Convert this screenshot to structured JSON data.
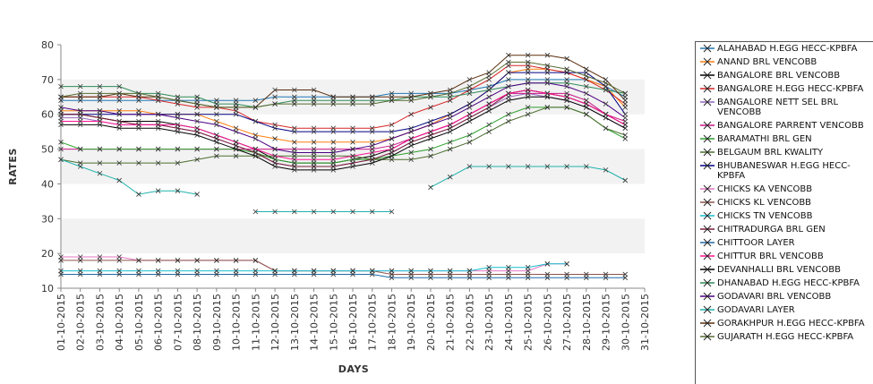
{
  "chart_data": {
    "type": "line",
    "xlabel": "DAYS",
    "ylabel": "RATES",
    "ylim": [
      10,
      80
    ],
    "yticks": [
      10,
      20,
      30,
      40,
      50,
      60,
      70,
      80
    ],
    "grid": "alternating horizontal bands",
    "legend": "right",
    "x": [
      "01-10-2015",
      "02-10-2015",
      "03-10-2015",
      "04-10-2015",
      "05-10-2015",
      "06-10-2015",
      "07-10-2015",
      "08-10-2015",
      "09-10-2015",
      "10-10-2015",
      "11-10-2015",
      "12-10-2015",
      "13-10-2015",
      "14-10-2015",
      "15-10-2015",
      "16-10-2015",
      "17-10-2015",
      "18-10-2015",
      "19-10-2015",
      "20-10-2015",
      "21-10-2015",
      "22-10-2015",
      "23-10-2015",
      "24-10-2015",
      "25-10-2015",
      "26-10-2015",
      "27-10-2015",
      "28-10-2015",
      "29-10-2015",
      "30-10-2015",
      "31-10-2015"
    ],
    "series": [
      {
        "name": "ALAHABAD H.EGG HECC-KPBFA",
        "color": "#1f77b4",
        "values": [
          64,
          64,
          64,
          64,
          64,
          64,
          64,
          64,
          64,
          64,
          64,
          65,
          65,
          65,
          65,
          65,
          65,
          66,
          66,
          66,
          66,
          67,
          68,
          70,
          70,
          70,
          70,
          70,
          68,
          65,
          null
        ]
      },
      {
        "name": "ANAND BRL VENCOBB",
        "color": "#ff7f0e",
        "values": [
          61,
          61,
          61,
          61,
          61,
          60,
          60,
          60,
          58,
          56,
          54,
          53,
          52,
          52,
          52,
          52,
          52,
          53,
          55,
          57,
          60,
          63,
          67,
          72,
          73,
          73,
          72,
          70,
          68,
          62,
          null
        ]
      },
      {
        "name": "BANGALORE BRL VENCOBB",
        "color": "#000000",
        "values": [
          60,
          60,
          59,
          58,
          58,
          58,
          57,
          56,
          54,
          52,
          50,
          47,
          46,
          46,
          46,
          47,
          48,
          50,
          53,
          55,
          57,
          60,
          63,
          66,
          67,
          66,
          65,
          63,
          60,
          57,
          null
        ]
      },
      {
        "name": "BANGALORE H.EGG HECC-KPBFA",
        "color": "#d62728",
        "values": [
          65,
          65,
          65,
          65,
          65,
          64,
          63,
          62,
          62,
          61,
          58,
          57,
          56,
          56,
          56,
          56,
          56,
          57,
          60,
          62,
          64,
          67,
          70,
          74,
          74,
          73,
          72,
          70,
          67,
          63,
          null
        ]
      },
      {
        "name": "BANGALORE NETT SEL BRL VENCOBB",
        "color": "#9467bd",
        "values": [
          59,
          59,
          58,
          57,
          57,
          57,
          56,
          55,
          53,
          51,
          49,
          46,
          45,
          45,
          45,
          46,
          47,
          49,
          52,
          54,
          56,
          59,
          62,
          65,
          66,
          65,
          64,
          62,
          59,
          56,
          null
        ]
      },
      {
        "name": "BANGALORE PARRENT VENCOBB",
        "color": "#c71585",
        "values": [
          50,
          50,
          50,
          50,
          50,
          50,
          50,
          50,
          50,
          50,
          50,
          50,
          50,
          50,
          50,
          50,
          50,
          51,
          53,
          55,
          57,
          60,
          63,
          66,
          66,
          66,
          66,
          64,
          60,
          58,
          null
        ]
      },
      {
        "name": "BARAMATHI BRL GEN",
        "color": "#2ca02c",
        "values": [
          52,
          50,
          50,
          50,
          50,
          50,
          50,
          50,
          50,
          50,
          49,
          47,
          46,
          46,
          46,
          47,
          47,
          48,
          49,
          50,
          52,
          54,
          57,
          60,
          62,
          62,
          62,
          60,
          56,
          53,
          null
        ]
      },
      {
        "name": "BELGAUM BRL KWALITY",
        "color": "#4b6e2e",
        "values": [
          47,
          46,
          46,
          46,
          46,
          46,
          46,
          47,
          48,
          48,
          48,
          48,
          48,
          48,
          48,
          48,
          47,
          47,
          47,
          48,
          50,
          52,
          55,
          58,
          60,
          62,
          62,
          60,
          56,
          54,
          null
        ]
      },
      {
        "name": "BHUBANESWAR H.EGG HECC-KPBFA",
        "color": "#000080",
        "values": [
          60,
          60,
          60,
          60,
          60,
          60,
          60,
          60,
          60,
          60,
          58,
          56,
          55,
          55,
          55,
          55,
          55,
          55,
          56,
          58,
          60,
          63,
          67,
          72,
          72,
          72,
          72,
          72,
          68,
          60,
          null
        ]
      },
      {
        "name": "CHICKS KA VENCOBB",
        "color": "#e377c2",
        "values": [
          19,
          19,
          19,
          19,
          18,
          18,
          18,
          18,
          18,
          18,
          18,
          15,
          15,
          15,
          15,
          15,
          15,
          15,
          15,
          15,
          15,
          15,
          15,
          15,
          15,
          17,
          17,
          null,
          null,
          null,
          null
        ]
      },
      {
        "name": "CHICKS KL VENCOBB",
        "color": "#8c564b",
        "values": [
          18,
          18,
          18,
          18,
          18,
          18,
          18,
          18,
          18,
          18,
          18,
          15,
          15,
          15,
          15,
          15,
          15,
          14,
          14,
          14,
          14,
          14,
          14,
          14,
          14,
          14,
          14,
          14,
          14,
          14,
          null
        ]
      },
      {
        "name": "CHICKS TN VENCOBB",
        "color": "#17becf",
        "values": [
          15,
          15,
          15,
          15,
          15,
          15,
          15,
          15,
          15,
          15,
          15,
          15,
          15,
          15,
          15,
          15,
          15,
          15,
          15,
          15,
          15,
          15,
          16,
          16,
          16,
          17,
          17,
          null,
          null,
          null,
          null
        ]
      },
      {
        "name": "CHITRADURGA BRL GEN",
        "color": "#7b1e3a",
        "values": [
          60,
          60,
          59,
          58,
          57,
          57,
          56,
          55,
          53,
          51,
          49,
          46,
          45,
          45,
          45,
          46,
          47,
          49,
          52,
          54,
          56,
          59,
          62,
          66,
          67,
          66,
          65,
          63,
          60,
          57,
          null
        ]
      },
      {
        "name": "CHITTOOR LAYER",
        "color": "#1e6aa8",
        "values": [
          14,
          14,
          14,
          14,
          14,
          14,
          14,
          14,
          14,
          14,
          14,
          14,
          14,
          14,
          14,
          14,
          14,
          13,
          13,
          13,
          13,
          13,
          13,
          13,
          13,
          13,
          13,
          13,
          13,
          13,
          null
        ]
      },
      {
        "name": "CHITTUR BRL VENCOBB",
        "color": "#ff1493",
        "values": [
          58,
          58,
          58,
          57,
          57,
          57,
          57,
          56,
          54,
          52,
          50,
          48,
          47,
          47,
          47,
          48,
          49,
          50,
          53,
          55,
          57,
          60,
          63,
          66,
          67,
          66,
          65,
          63,
          60,
          57,
          null
        ]
      },
      {
        "name": "DEVANHALLI BRL VENCOBB",
        "color": "#000000",
        "values": [
          57,
          57,
          57,
          56,
          56,
          56,
          55,
          54,
          52,
          50,
          48,
          45,
          44,
          44,
          44,
          45,
          46,
          48,
          51,
          53,
          55,
          58,
          61,
          64,
          65,
          65,
          64,
          62,
          59,
          56,
          null
        ]
      },
      {
        "name": "DHANABAD H.EGG HECC-KPBFA",
        "color": "#2e8b57",
        "values": [
          68,
          68,
          68,
          68,
          66,
          66,
          65,
          65,
          63,
          63,
          62,
          63,
          64,
          64,
          64,
          64,
          64,
          64,
          65,
          65,
          65,
          66,
          67,
          68,
          69,
          69,
          69,
          68,
          67,
          66,
          null
        ]
      },
      {
        "name": "GODAVARI BRL VENCOBB",
        "color": "#4b0082",
        "values": [
          62,
          61,
          61,
          60,
          60,
          60,
          59,
          58,
          57,
          55,
          53,
          50,
          49,
          49,
          49,
          50,
          51,
          53,
          55,
          57,
          59,
          62,
          65,
          68,
          69,
          69,
          68,
          66,
          63,
          59,
          null
        ]
      },
      {
        "name": "GODAVARI LAYER",
        "color": "#20b2aa",
        "values": [
          47,
          45,
          43,
          41,
          37,
          38,
          38,
          37,
          null,
          null,
          32,
          32,
          32,
          32,
          32,
          32,
          32,
          32,
          null,
          39,
          42,
          45,
          45,
          45,
          45,
          45,
          45,
          45,
          44,
          41,
          null
        ]
      },
      {
        "name": "GORAKHPUR H.EGG HECC-KPBFA",
        "color": "#5a2d0c",
        "values": [
          65,
          65,
          65,
          66,
          65,
          65,
          64,
          63,
          62,
          62,
          62,
          67,
          67,
          67,
          65,
          65,
          65,
          65,
          65,
          66,
          67,
          70,
          72,
          77,
          77,
          77,
          76,
          73,
          70,
          64,
          null
        ]
      },
      {
        "name": "GUJARATH H.EGG HECC-KPBFA",
        "color": "#556b2f",
        "values": [
          65,
          66,
          66,
          66,
          66,
          65,
          64,
          63,
          62,
          62,
          62,
          63,
          63,
          63,
          63,
          63,
          63,
          64,
          64,
          65,
          66,
          68,
          71,
          75,
          75,
          74,
          73,
          71,
          69,
          66,
          null
        ]
      }
    ]
  }
}
